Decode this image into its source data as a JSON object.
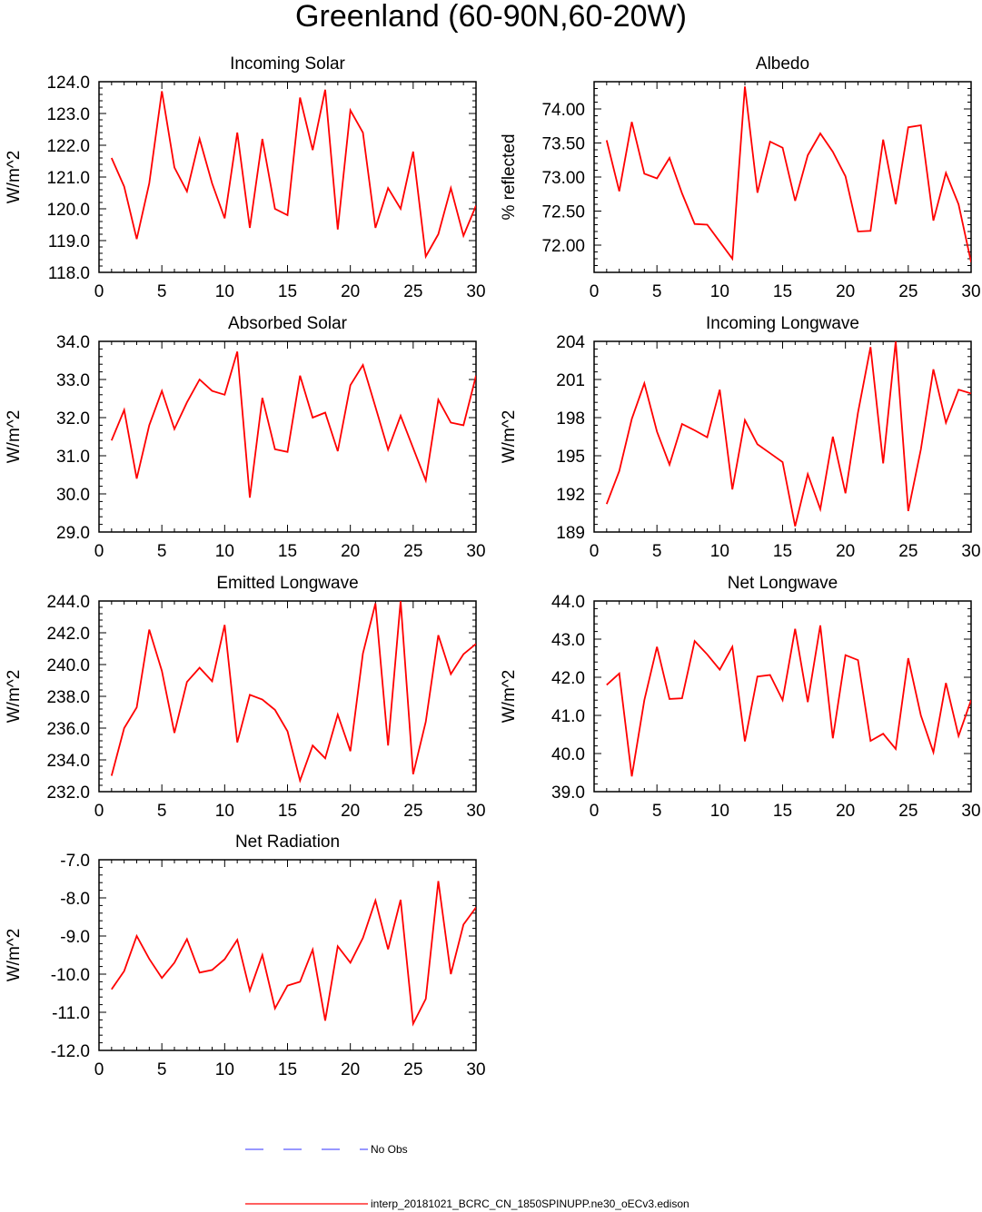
{
  "title": "Greenland (60-90N,60-20W)",
  "colors": {
    "model_line": "#ff0000",
    "obs_line": "#5a5aff",
    "axes": "#000000"
  },
  "legend": {
    "obs_label": "No Obs",
    "model_label": "interp_20181021_BCRC_CN_1850SPINUPP.ne30_oECv3.edison"
  },
  "chart_data": [
    {
      "type": "line",
      "title": "Incoming Solar",
      "xlabel": "",
      "ylabel": "W/m^2",
      "xlim": [
        0,
        30
      ],
      "ylim": [
        118.0,
        124.0
      ],
      "xticks": [
        0,
        5,
        10,
        15,
        20,
        25,
        30
      ],
      "yticks": [
        118.0,
        119.0,
        120.0,
        121.0,
        122.0,
        123.0,
        124.0
      ],
      "ytick_labels": [
        "118.0",
        "119.0",
        "120.0",
        "121.0",
        "122.0",
        "123.0",
        "124.0"
      ],
      "x": [
        1,
        2,
        3,
        4,
        5,
        6,
        7,
        8,
        9,
        10,
        11,
        12,
        13,
        14,
        15,
        16,
        17,
        18,
        19,
        20,
        21,
        22,
        23,
        24,
        25,
        26,
        27,
        28,
        29,
        30
      ],
      "series": [
        {
          "name": "interp_20181021_BCRC_CN_1850SPINUPP.ne30_oECv3.edison",
          "values": [
            121.6,
            120.7,
            119.05,
            120.8,
            123.7,
            121.3,
            120.55,
            122.2,
            120.8,
            119.7,
            122.4,
            119.4,
            122.2,
            120.0,
            119.8,
            123.5,
            121.85,
            123.75,
            119.35,
            123.1,
            122.4,
            119.4,
            120.65,
            120.0,
            121.8,
            118.5,
            119.2,
            120.65,
            119.15,
            120.1
          ]
        }
      ]
    },
    {
      "type": "line",
      "title": "Albedo",
      "xlabel": "",
      "ylabel": "% reflected",
      "xlim": [
        0,
        30
      ],
      "ylim": [
        71.6,
        74.4
      ],
      "xticks": [
        0,
        5,
        10,
        15,
        20,
        25,
        30
      ],
      "yticks": [
        72.0,
        72.5,
        73.0,
        73.5,
        74.0
      ],
      "ytick_labels": [
        "72.00",
        "72.50",
        "73.00",
        "73.50",
        "74.00"
      ],
      "x": [
        1,
        2,
        3,
        4,
        5,
        6,
        7,
        8,
        9,
        10,
        11,
        12,
        13,
        14,
        15,
        16,
        17,
        18,
        19,
        20,
        21,
        22,
        23,
        24,
        25,
        26,
        27,
        28,
        29,
        30
      ],
      "series": [
        {
          "name": "interp_20181021_BCRC_CN_1850SPINUPP.ne30_oECv3.edison",
          "values": [
            73.54,
            72.79,
            73.81,
            73.05,
            72.98,
            73.28,
            72.76,
            72.31,
            72.3,
            72.05,
            71.8,
            74.33,
            72.77,
            73.52,
            73.43,
            72.65,
            73.32,
            73.64,
            73.37,
            73.01,
            72.2,
            72.21,
            73.55,
            72.6,
            73.73,
            73.76,
            72.36,
            73.06,
            72.6,
            71.75
          ]
        }
      ]
    },
    {
      "type": "line",
      "title": "Absorbed Solar",
      "xlabel": "",
      "ylabel": "W/m^2",
      "xlim": [
        0,
        30
      ],
      "ylim": [
        29.0,
        34.0
      ],
      "xticks": [
        0,
        5,
        10,
        15,
        20,
        25,
        30
      ],
      "yticks": [
        29.0,
        30.0,
        31.0,
        32.0,
        33.0,
        34.0
      ],
      "ytick_labels": [
        "29.0",
        "30.0",
        "31.0",
        "32.0",
        "33.0",
        "34.0"
      ],
      "x": [
        1,
        2,
        3,
        4,
        5,
        6,
        7,
        8,
        9,
        10,
        11,
        12,
        13,
        14,
        15,
        16,
        17,
        18,
        19,
        20,
        21,
        22,
        23,
        24,
        25,
        26,
        27,
        28,
        29,
        30
      ],
      "series": [
        {
          "name": "interp_20181021_BCRC_CN_1850SPINUPP.ne30_oECv3.edison",
          "values": [
            31.4,
            32.2,
            30.4,
            31.8,
            32.7,
            31.7,
            32.4,
            33.0,
            32.7,
            32.6,
            33.73,
            29.9,
            32.52,
            31.17,
            31.1,
            33.1,
            32.0,
            32.13,
            31.12,
            32.85,
            33.38,
            32.28,
            31.16,
            32.05,
            31.2,
            30.35,
            32.47,
            31.87,
            31.8,
            33.1
          ]
        }
      ]
    },
    {
      "type": "line",
      "title": "Incoming Longwave",
      "xlabel": "",
      "ylabel": "W/m^2",
      "xlim": [
        0,
        30
      ],
      "ylim": [
        189,
        204
      ],
      "xticks": [
        0,
        5,
        10,
        15,
        20,
        25,
        30
      ],
      "yticks": [
        189,
        192,
        195,
        198,
        201,
        204
      ],
      "ytick_labels": [
        "189",
        "192",
        "195",
        "198",
        "201",
        "204"
      ],
      "x": [
        1,
        2,
        3,
        4,
        5,
        6,
        7,
        8,
        9,
        10,
        11,
        12,
        13,
        14,
        15,
        16,
        17,
        18,
        19,
        20,
        21,
        22,
        23,
        24,
        25,
        26,
        27,
        28,
        29,
        30
      ],
      "series": [
        {
          "name": "interp_20181021_BCRC_CN_1850SPINUPP.ne30_oECv3.edison",
          "values": [
            191.2,
            193.8,
            197.9,
            200.7,
            196.9,
            194.3,
            197.5,
            197.0,
            196.45,
            200.2,
            192.35,
            197.8,
            195.9,
            195.2,
            194.5,
            189.45,
            193.55,
            190.8,
            196.5,
            192.05,
            198.4,
            203.55,
            194.4,
            204.0,
            190.65,
            195.5,
            201.8,
            197.6,
            200.2,
            199.9
          ]
        }
      ]
    },
    {
      "type": "line",
      "title": "Emitted Longwave",
      "xlabel": "",
      "ylabel": "W/m^2",
      "xlim": [
        0,
        30
      ],
      "ylim": [
        232.0,
        244.0
      ],
      "xticks": [
        0,
        5,
        10,
        15,
        20,
        25,
        30
      ],
      "yticks": [
        232.0,
        234.0,
        236.0,
        238.0,
        240.0,
        242.0,
        244.0
      ],
      "ytick_labels": [
        "232.0",
        "234.0",
        "236.0",
        "238.0",
        "240.0",
        "242.0",
        "244.0"
      ],
      "x": [
        1,
        2,
        3,
        4,
        5,
        6,
        7,
        8,
        9,
        10,
        11,
        12,
        13,
        14,
        15,
        16,
        17,
        18,
        19,
        20,
        21,
        22,
        23,
        24,
        25,
        26,
        27,
        28,
        29,
        30
      ],
      "series": [
        {
          "name": "interp_20181021_BCRC_CN_1850SPINUPP.ne30_oECv3.edison",
          "values": [
            233.0,
            236.0,
            237.3,
            242.2,
            239.6,
            235.7,
            238.9,
            239.8,
            238.95,
            242.5,
            235.1,
            238.1,
            237.8,
            237.15,
            235.8,
            232.7,
            234.9,
            234.1,
            236.85,
            234.55,
            240.7,
            243.85,
            234.9,
            244.0,
            233.1,
            236.4,
            241.85,
            239.4,
            240.65,
            241.3
          ]
        }
      ]
    },
    {
      "type": "line",
      "title": "Net Longwave",
      "xlabel": "",
      "ylabel": "W/m^2",
      "xlim": [
        0,
        30
      ],
      "ylim": [
        39.0,
        44.0
      ],
      "xticks": [
        0,
        5,
        10,
        15,
        20,
        25,
        30
      ],
      "yticks": [
        39.0,
        40.0,
        41.0,
        42.0,
        43.0,
        44.0
      ],
      "ytick_labels": [
        "39.0",
        "40.0",
        "41.0",
        "42.0",
        "43.0",
        "44.0"
      ],
      "x": [
        1,
        2,
        3,
        4,
        5,
        6,
        7,
        8,
        9,
        10,
        11,
        12,
        13,
        14,
        15,
        16,
        17,
        18,
        19,
        20,
        21,
        22,
        23,
        24,
        25,
        26,
        27,
        28,
        29,
        30
      ],
      "series": [
        {
          "name": "interp_20181021_BCRC_CN_1850SPINUPP.ne30_oECv3.edison",
          "values": [
            41.8,
            42.1,
            39.4,
            41.4,
            42.8,
            41.43,
            41.45,
            42.95,
            42.6,
            42.2,
            42.8,
            40.32,
            42.02,
            42.06,
            41.4,
            43.27,
            41.35,
            43.36,
            40.4,
            42.58,
            42.45,
            40.33,
            40.52,
            40.12,
            42.5,
            41.0,
            40.03,
            41.85,
            40.46,
            41.4
          ]
        }
      ]
    },
    {
      "type": "line",
      "title": "Net Radiation",
      "xlabel": "",
      "ylabel": "W/m^2",
      "xlim": [
        0,
        30
      ],
      "ylim": [
        -12.0,
        -7.0
      ],
      "xticks": [
        0,
        5,
        10,
        15,
        20,
        25,
        30
      ],
      "yticks": [
        -12.0,
        -11.0,
        -10.0,
        -9.0,
        -8.0,
        -7.0
      ],
      "ytick_labels": [
        "-12.0",
        "-11.0",
        "-10.0",
        "-9.0",
        "-8.0",
        "-7.0"
      ],
      "x": [
        1,
        2,
        3,
        4,
        5,
        6,
        7,
        8,
        9,
        10,
        11,
        12,
        13,
        14,
        15,
        16,
        17,
        18,
        19,
        20,
        21,
        22,
        23,
        24,
        25,
        26,
        27,
        28,
        29,
        30
      ],
      "series": [
        {
          "name": "interp_20181021_BCRC_CN_1850SPINUPP.ne30_oECv3.edison",
          "values": [
            -10.4,
            -9.92,
            -9.0,
            -9.6,
            -10.1,
            -9.7,
            -9.08,
            -9.96,
            -9.89,
            -9.61,
            -9.1,
            -10.43,
            -9.5,
            -10.9,
            -10.3,
            -10.2,
            -9.36,
            -11.22,
            -9.27,
            -9.7,
            -9.05,
            -8.07,
            -9.35,
            -8.05,
            -11.3,
            -10.65,
            -7.56,
            -10.0,
            -8.7,
            -8.25
          ]
        }
      ]
    }
  ]
}
